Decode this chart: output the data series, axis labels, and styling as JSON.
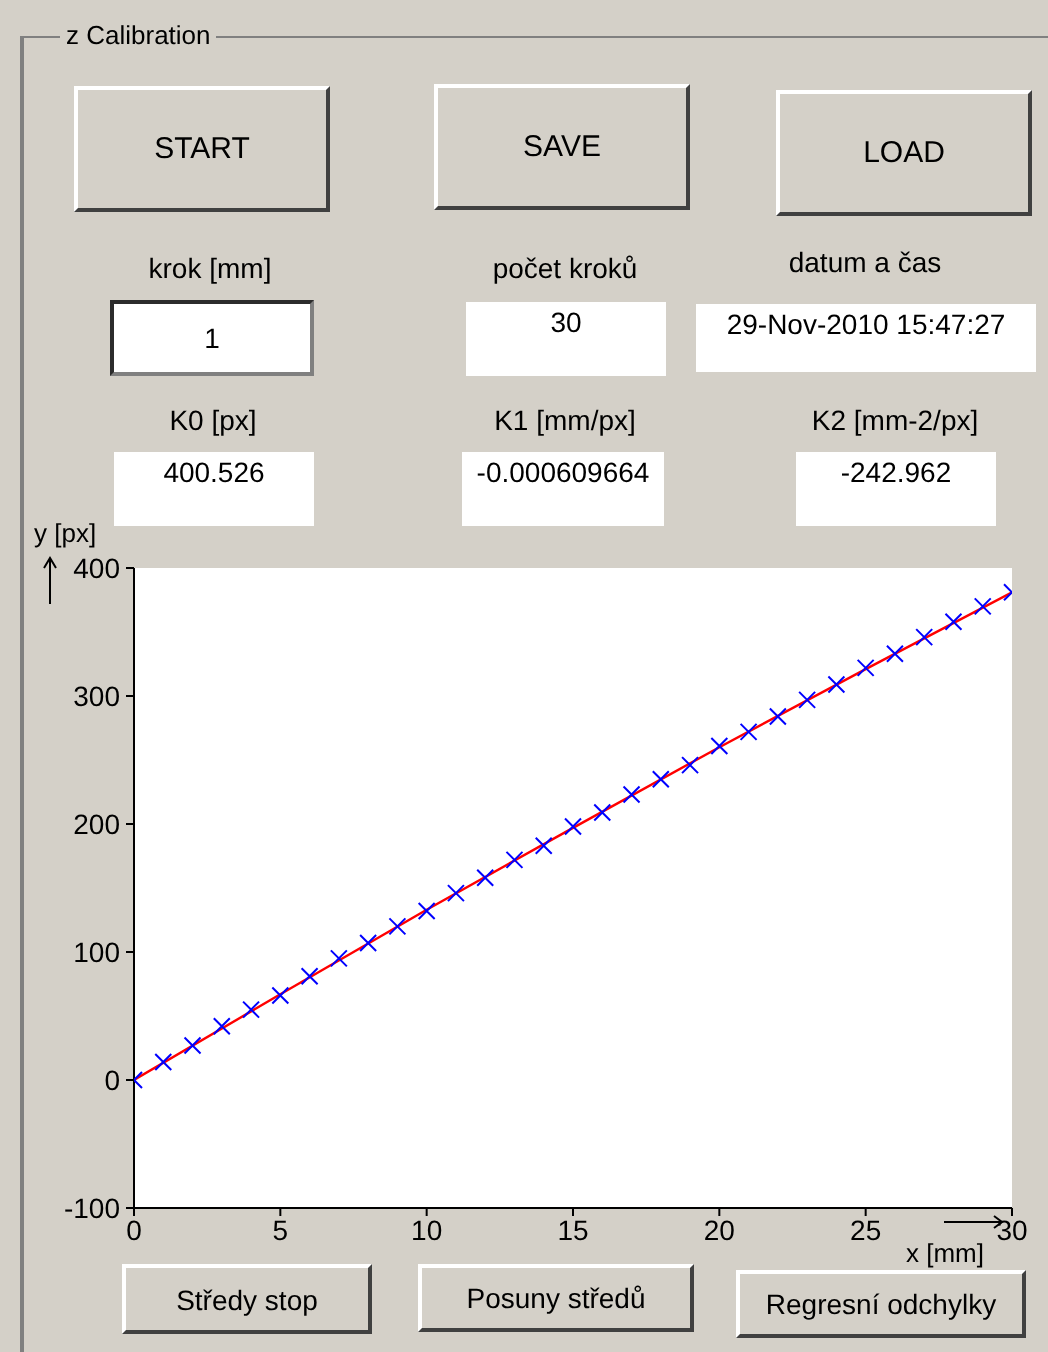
{
  "chart_data": {
    "type": "scatter",
    "title": "z Calibration",
    "xlabel": "x [mm]",
    "ylabel": "y [px]",
    "annotations": [
      "START",
      "SAVE",
      "LOAD",
      "krok [mm]",
      "1",
      "počet kroků",
      "30",
      "datum a čas",
      "29-Nov-2010 15:47:27",
      "K0 [px]",
      "400.526",
      "K1 [mm/px]",
      "-0.000609664",
      "K2 [mm-2/px]",
      "-242.962",
      "Středy stop",
      "Posuny středů",
      "Regresní odchylky"
    ],
    "x": [
      0,
      1,
      2,
      3,
      4,
      5,
      6,
      7,
      8,
      9,
      10,
      11,
      12,
      13,
      14,
      15,
      16,
      17,
      18,
      19,
      20,
      21,
      22,
      23,
      24,
      25,
      26,
      27,
      28,
      29,
      30
    ],
    "series": [
      {
        "type": "scatter",
        "color": "#0000ff",
        "marker": "cross",
        "values": [
          0,
          14,
          27,
          42,
          55,
          66,
          81,
          95,
          107,
          120,
          132,
          146,
          158,
          172,
          183,
          198,
          209,
          223,
          235,
          246,
          261,
          272,
          284,
          297,
          309,
          322,
          333,
          346,
          358,
          370,
          381
        ]
      },
      {
        "type": "line",
        "color": "#ff0000",
        "marker": "none",
        "x": [
          0,
          5,
          10,
          15,
          20,
          25,
          30
        ],
        "values": [
          0,
          67,
          133,
          197,
          260,
          321,
          381
        ]
      }
    ],
    "xlim": [
      0,
      30
    ],
    "xticks": [
      0,
      5,
      10,
      15,
      20,
      25,
      30
    ],
    "ylim": [
      -100,
      400
    ],
    "yticks": [
      -100,
      0,
      100,
      200,
      300,
      400
    ]
  }
}
